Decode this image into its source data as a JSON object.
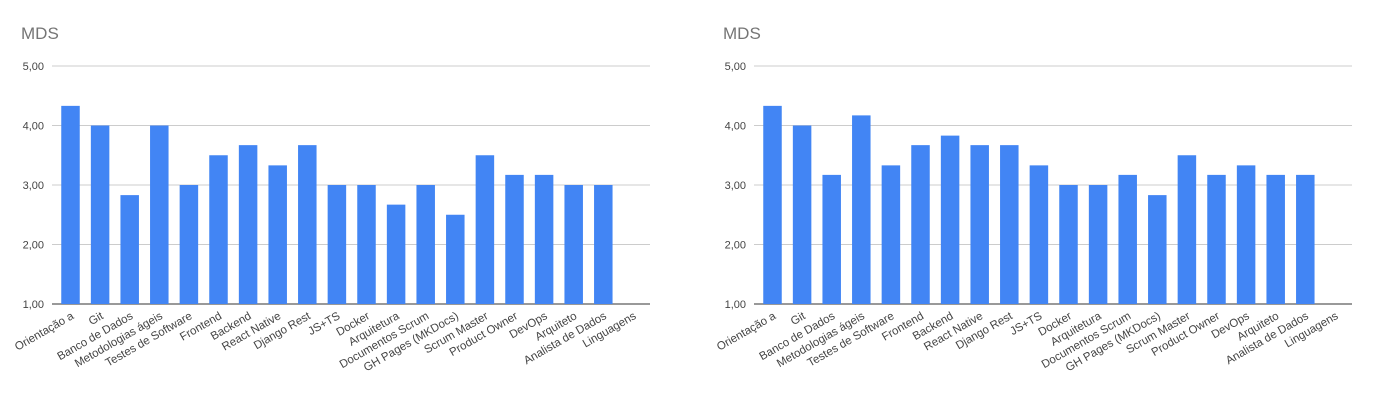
{
  "chart_data": [
    {
      "type": "bar",
      "title": "MDS",
      "xlabel": "",
      "ylabel": "",
      "ylim": [
        1,
        5
      ],
      "yticks": [
        "1,00",
        "2,00",
        "3,00",
        "4,00",
        "5,00"
      ],
      "grid": true,
      "color": "#4285f4",
      "categories": [
        "Orientação a",
        "Git",
        "Banco de Dados",
        "Metodologias ágeis",
        "Testes de Software",
        "Frontend",
        "Backend",
        "React Native",
        "Django Rest",
        "JS+TS",
        "Docker",
        "Arquitetura",
        "Documentos Scrum",
        "GH Pages (MKDocs)",
        "Scrum Master",
        "Product Owner",
        "DevOps",
        "Arquiteto",
        "Analista de Dados",
        "Linguagens"
      ],
      "values": [
        4.33,
        4.0,
        2.83,
        4.0,
        3.0,
        3.5,
        3.67,
        3.33,
        3.67,
        3.0,
        3.0,
        2.67,
        3.0,
        2.5,
        3.5,
        3.17,
        3.17,
        3.0,
        3.0,
        null
      ]
    },
    {
      "type": "bar",
      "title": "MDS",
      "xlabel": "",
      "ylabel": "",
      "ylim": [
        1,
        5
      ],
      "yticks": [
        "1,00",
        "2,00",
        "3,00",
        "4,00",
        "5,00"
      ],
      "grid": true,
      "color": "#4285f4",
      "categories": [
        "Orientação a",
        "Git",
        "Banco de Dados",
        "Metodologias ágeis",
        "Testes de Software",
        "Frontend",
        "Backend",
        "React Native",
        "Django Rest",
        "JS+TS",
        "Docker",
        "Arquitetura",
        "Documentos Scrum",
        "GH Pages (MKDocs)",
        "Scrum Master",
        "Product Owner",
        "DevOps",
        "Arquiteto",
        "Analista de Dados",
        "Linguagens"
      ],
      "values": [
        4.33,
        4.0,
        3.17,
        4.17,
        3.33,
        3.67,
        3.83,
        3.67,
        3.67,
        3.33,
        3.0,
        3.0,
        3.17,
        2.83,
        3.5,
        3.17,
        3.33,
        3.17,
        3.17,
        null
      ]
    }
  ]
}
